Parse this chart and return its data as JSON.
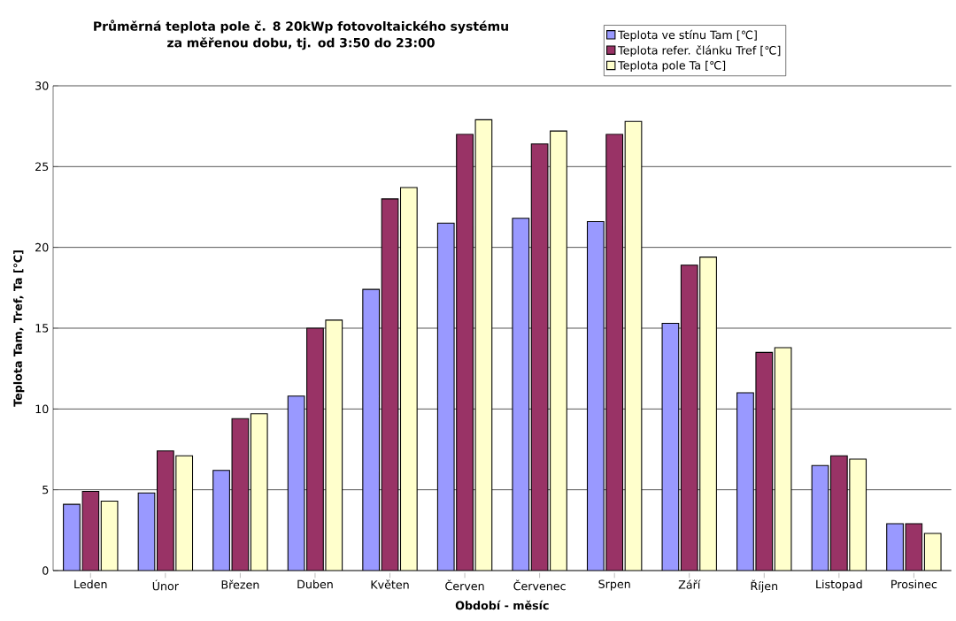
{
  "chart_data": {
    "type": "bar",
    "title": "Průměrná teplota pole č. 8 20kWp fotovoltaického systému\nza měřenou dobu, tj. od 3:50 do 23:00",
    "xlabel": "Období - měsíc",
    "ylabel": "Teplota Tam, Tref, Ta [℃]",
    "categories": [
      "Leden",
      "Únor",
      "Březen",
      "Duben",
      "Květen",
      "Červen",
      "Červenec",
      "Srpen",
      "Září",
      "Říjen",
      "Listopad",
      "Prosinec"
    ],
    "series": [
      {
        "name": "Teplota ve stínu Tam [℃]",
        "color": "#9999ff",
        "values": [
          4.1,
          4.8,
          6.2,
          10.8,
          17.4,
          21.5,
          21.8,
          21.6,
          15.3,
          11.0,
          6.5,
          2.9
        ]
      },
      {
        "name": "Teplota refer. článku Tref [℃]",
        "color": "#993366",
        "values": [
          4.9,
          7.4,
          9.4,
          15.0,
          23.0,
          27.0,
          26.4,
          27.0,
          18.9,
          13.5,
          7.1,
          2.9
        ]
      },
      {
        "name": "Teplota pole Ta [℃]",
        "color": "#ffffcc",
        "values": [
          4.3,
          7.1,
          9.7,
          15.5,
          23.7,
          27.9,
          27.2,
          27.8,
          19.4,
          13.8,
          6.9,
          2.3
        ]
      }
    ],
    "ylim": [
      0,
      30
    ],
    "yticks": [
      0,
      5,
      10,
      15,
      20,
      25,
      30
    ],
    "grid": "y",
    "legend": "top right"
  }
}
